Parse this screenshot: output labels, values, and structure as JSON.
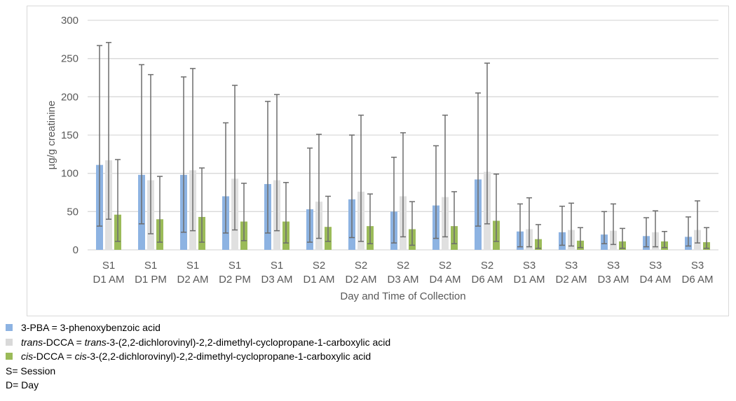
{
  "chart_data": {
    "type": "bar",
    "ylabel": "µg/g creatinine",
    "xlabel": "Day and Time of Collection",
    "ylim": [
      0,
      300
    ],
    "yticks": [
      0,
      50,
      100,
      150,
      200,
      250,
      300
    ],
    "grid": true,
    "categories": [
      [
        "S1",
        "D1 AM"
      ],
      [
        "S1",
        "D1 PM"
      ],
      [
        "S1",
        "D2 AM"
      ],
      [
        "S1",
        "D2 PM"
      ],
      [
        "S1",
        "D3 AM"
      ],
      [
        "S2",
        "D1 AM"
      ],
      [
        "S2",
        "D2 AM"
      ],
      [
        "S2",
        "D3 AM"
      ],
      [
        "S2",
        "D4 AM"
      ],
      [
        "S2",
        "D6 AM"
      ],
      [
        "S3",
        "D1 AM"
      ],
      [
        "S3",
        "D2 AM"
      ],
      [
        "S3",
        "D3 AM"
      ],
      [
        "S3",
        "D4 AM"
      ],
      [
        "S3",
        "D6 AM"
      ]
    ],
    "series": [
      {
        "key": "3-PBA",
        "color": "#8db3e2",
        "values": [
          111,
          98,
          98,
          70,
          86,
          53,
          66,
          50,
          58,
          92,
          24,
          23,
          20,
          18,
          17
        ],
        "err_low": [
          31,
          34,
          23,
          22,
          22,
          10,
          16,
          9,
          15,
          31,
          4,
          6,
          8,
          4,
          5
        ],
        "err_high": [
          267,
          242,
          226,
          166,
          194,
          133,
          150,
          121,
          136,
          205,
          60,
          57,
          50,
          42,
          43
        ]
      },
      {
        "key": "trans-DCCA",
        "color": "#e0e0e0",
        "values": [
          117,
          91,
          104,
          93,
          91,
          63,
          76,
          70,
          69,
          102,
          27,
          26,
          25,
          23,
          26
        ],
        "err_low": [
          40,
          21,
          25,
          26,
          25,
          15,
          11,
          17,
          17,
          34,
          4,
          5,
          7,
          4,
          9
        ],
        "err_high": [
          271,
          229,
          237,
          215,
          203,
          151,
          176,
          153,
          176,
          244,
          68,
          61,
          60,
          51,
          64
        ]
      },
      {
        "key": "cis-DCCA",
        "color": "#9bbb59",
        "values": [
          46,
          40,
          43,
          37,
          37,
          30,
          31,
          27,
          31,
          38,
          14,
          12,
          11,
          11,
          10
        ],
        "err_low": [
          11,
          10,
          10,
          12,
          9,
          11,
          8,
          6,
          8,
          11,
          2,
          3,
          2,
          3,
          2
        ],
        "err_high": [
          118,
          96,
          107,
          87,
          88,
          70,
          73,
          63,
          76,
          99,
          33,
          29,
          28,
          24,
          29
        ]
      }
    ],
    "legend_placement": "bottom-left"
  },
  "legend": [
    {
      "color": "#8db3e2",
      "parts": [
        {
          "t": "3-PBA = 3-phenoxybenzoic acid",
          "i": false
        }
      ]
    },
    {
      "color": "#d9d9d9",
      "parts": [
        {
          "t": "trans",
          "i": true
        },
        {
          "t": "-DCCA = ",
          "i": false
        },
        {
          "t": "trans",
          "i": true
        },
        {
          "t": "-3-(2,2-dichlorovinyl)-2,2-dimethyl-cyclopropane-1-carboxylic acid",
          "i": false
        }
      ]
    },
    {
      "color": "#9bbb59",
      "parts": [
        {
          "t": "cis",
          "i": true
        },
        {
          "t": "-DCCA = ",
          "i": false
        },
        {
          "t": "cis",
          "i": true
        },
        {
          "t": "-3-(2,2-dichlorovinyl)-2,2-dimethyl-cyclopropane-1-carboxylic acid",
          "i": false
        }
      ]
    }
  ],
  "notes": [
    "S= Session",
    "D= Day"
  ]
}
